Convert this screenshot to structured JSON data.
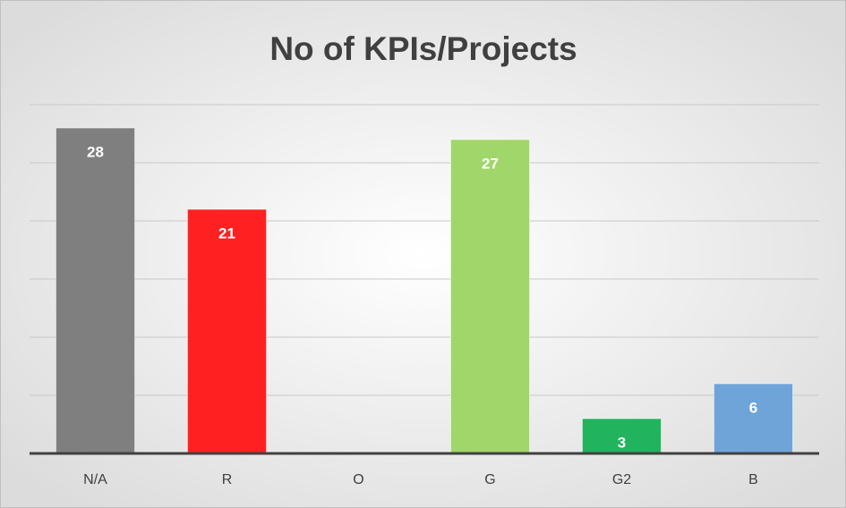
{
  "chart_data": {
    "type": "bar",
    "title": "No of KPIs/Projects",
    "categories": [
      "N/A",
      "R",
      "O",
      "G",
      "G2",
      "B"
    ],
    "values": [
      28,
      21,
      null,
      27,
      3,
      6
    ],
    "colors": [
      "#7f7f7f",
      "#ff2121",
      null,
      "#a1d66b",
      "#22b35e",
      "#6fa4d8"
    ],
    "ylim": [
      0,
      30
    ],
    "yticks": [
      0,
      5,
      10,
      15,
      20,
      25,
      30
    ],
    "grid": true
  }
}
